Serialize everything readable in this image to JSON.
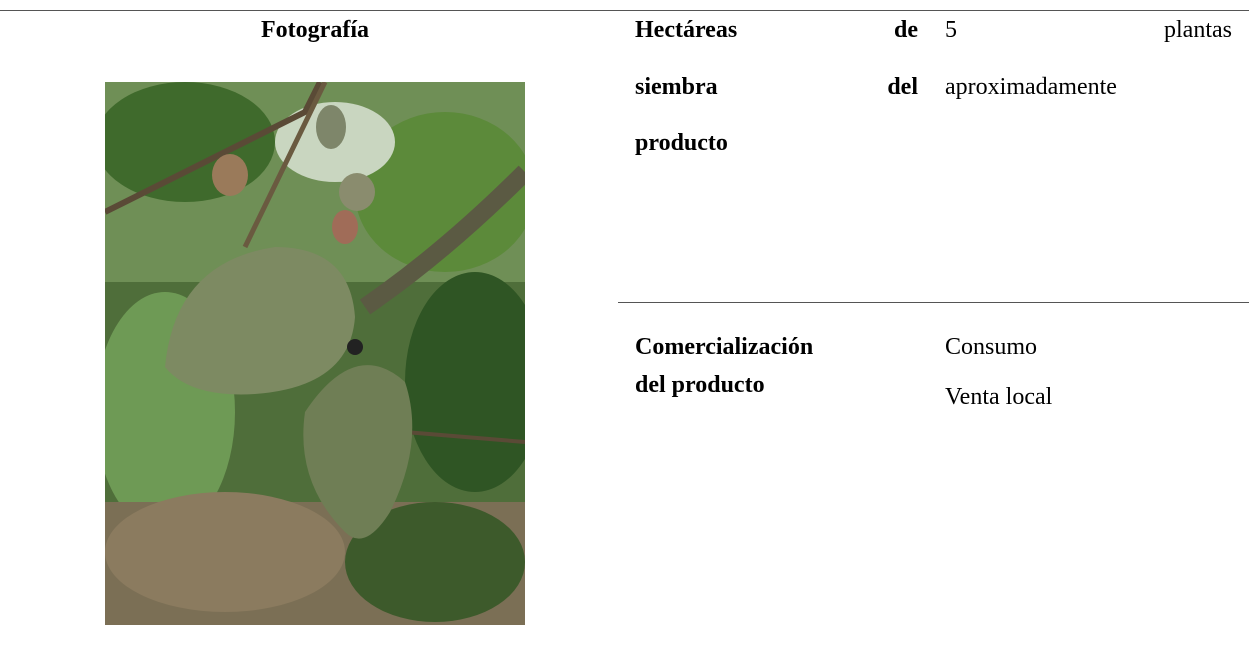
{
  "header": {
    "photo_label": "Fotografía"
  },
  "rows": [
    {
      "label_lines": [
        "Hectáreas de",
        "siembra del",
        "producto"
      ],
      "value_lines": [
        "5 plantas",
        "aproximadamente"
      ]
    },
    {
      "label_lines": [
        "Comercialización",
        "del producto"
      ],
      "value_lines": [
        "Consumo",
        "Venta local"
      ]
    }
  ]
}
